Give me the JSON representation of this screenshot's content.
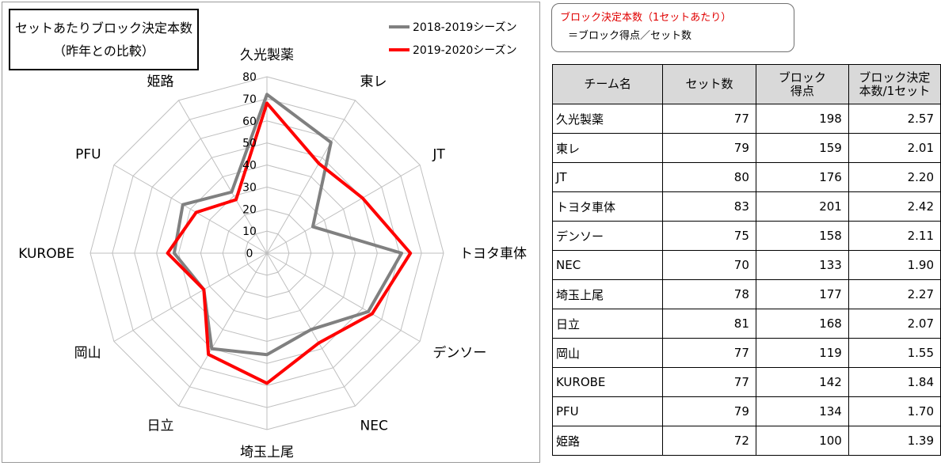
{
  "chart_box": {
    "title_line1": "セットあたりブロック決定本数",
    "title_line2": "（昨年との比較）"
  },
  "chart_data": {
    "type": "radar",
    "title": "セットあたりブロック決定本数（昨年との比較）",
    "categories": [
      "久光製薬",
      "東レ",
      "JT",
      "トヨタ車体",
      "デンソー",
      "NEC",
      "埼玉上尾",
      "日立",
      "岡山",
      "KUROBE",
      "PFU",
      "姫路"
    ],
    "r_ticks": [
      "0",
      "10",
      "20",
      "30",
      "40",
      "50",
      "60",
      "70",
      "80"
    ],
    "rlim": [
      0,
      80
    ],
    "grid": true,
    "legend_position": "top-right",
    "series": [
      {
        "name": "2018-2019シーズン",
        "color": "#808080",
        "values": [
          72,
          58,
          24,
          61,
          53,
          40,
          46,
          50,
          33,
          42,
          44,
          32
        ]
      },
      {
        "name": "2019-2020シーズン",
        "color": "#ff0000",
        "values": [
          68,
          47,
          50,
          65,
          55,
          47,
          59,
          53,
          33,
          45,
          37,
          28
        ]
      }
    ]
  },
  "note": {
    "line1": "ブロック決定本数（1セットあたり）",
    "line2": "＝ブロック得点／セット数"
  },
  "table": {
    "headers": [
      {
        "l1": "チーム名",
        "l2": ""
      },
      {
        "l1": "セット数",
        "l2": ""
      },
      {
        "l1": "ブロック",
        "l2": "得点"
      },
      {
        "l1": "ブロック決定",
        "l2": "本数/1セット"
      }
    ],
    "rows": [
      [
        "久光製薬",
        "77",
        "198",
        "2.57"
      ],
      [
        "東レ",
        "79",
        "159",
        "2.01"
      ],
      [
        "JT",
        "80",
        "176",
        "2.20"
      ],
      [
        "トヨタ車体",
        "83",
        "201",
        "2.42"
      ],
      [
        "デンソー",
        "75",
        "158",
        "2.11"
      ],
      [
        "NEC",
        "70",
        "133",
        "1.90"
      ],
      [
        "埼玉上尾",
        "78",
        "177",
        "2.27"
      ],
      [
        "日立",
        "81",
        "168",
        "2.07"
      ],
      [
        "岡山",
        "77",
        "119",
        "1.55"
      ],
      [
        "KUROBE",
        "77",
        "142",
        "1.84"
      ],
      [
        "PFU",
        "79",
        "134",
        "1.70"
      ],
      [
        "姫路",
        "72",
        "100",
        "1.39"
      ]
    ]
  }
}
